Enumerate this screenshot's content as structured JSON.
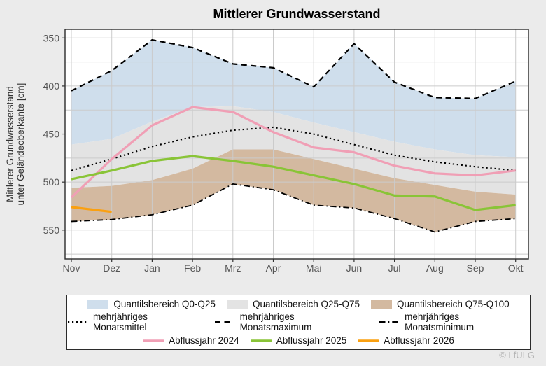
{
  "title": "Mittlerer Grundwasserstand",
  "y_axis": {
    "label_line1": "Mittlerer Grundwasserstand",
    "label_line2": "unter Geländeoberkante [cm]",
    "labeled_ticks": [
      350,
      400,
      450,
      500,
      550
    ]
  },
  "x_axis": {
    "months": [
      "Nov",
      "Dez",
      "Jan",
      "Feb",
      "Mrz",
      "Apr",
      "Mai",
      "Jun",
      "Jul",
      "Aug",
      "Sep",
      "Okt"
    ]
  },
  "chart_data": {
    "type": "area",
    "title": "Mittlerer Grundwasserstand",
    "ylabel": "Mittlerer Grundwasserstand unter Geländeoberkante [cm]",
    "xlabel": "",
    "categories": [
      "Nov",
      "Dez",
      "Jan",
      "Feb",
      "Mrz",
      "Apr",
      "Mai",
      "Jun",
      "Jul",
      "Aug",
      "Sep",
      "Okt"
    ],
    "y_inverted": true,
    "ylim": [
      350,
      575
    ],
    "grid_step": 25,
    "grid": true,
    "legend_position": "bottom",
    "bands": [
      {
        "name": "Quantilsbereich Q0-Q25",
        "color": "#cfdeec",
        "upper": [
          405,
          384,
          352,
          360,
          377,
          381,
          401,
          356,
          396,
          412,
          413,
          395
        ],
        "lower": [
          461,
          455,
          437,
          422,
          421,
          427,
          438,
          448,
          458,
          466,
          472,
          474
        ]
      },
      {
        "name": "Quantilsbereich Q25-Q75",
        "color": "#e3e3e3",
        "upper": [
          461,
          455,
          437,
          422,
          421,
          427,
          438,
          448,
          458,
          466,
          472,
          474
        ],
        "lower": [
          506,
          504,
          498,
          486,
          466,
          466,
          476,
          486,
          496,
          503,
          510,
          513
        ]
      },
      {
        "name": "Quantilsbereich Q75-Q100",
        "color": "#d3b9a0",
        "upper": [
          506,
          504,
          498,
          486,
          466,
          466,
          476,
          486,
          496,
          503,
          510,
          513
        ],
        "lower": [
          541,
          539,
          534,
          524,
          502,
          508,
          524,
          527,
          538,
          552,
          541,
          538
        ]
      }
    ],
    "series": [
      {
        "name": "mehrjähriges Monatsmittel",
        "style": "dotted",
        "color": "#000000",
        "width": 2.1,
        "values": [
          488,
          476,
          463,
          453,
          446,
          443,
          450,
          461,
          472,
          479,
          484,
          488
        ]
      },
      {
        "name": "mehrjähriges Monatsmaximum",
        "style": "dashed",
        "color": "#000000",
        "width": 2.2,
        "values": [
          405,
          384,
          352,
          360,
          377,
          381,
          401,
          356,
          396,
          412,
          413,
          395
        ]
      },
      {
        "name": "mehrjähriges Monatsminimum",
        "style": "dashdot",
        "color": "#000000",
        "width": 1.8,
        "values": [
          541,
          539,
          534,
          524,
          502,
          508,
          524,
          527,
          538,
          552,
          541,
          538
        ]
      },
      {
        "name": "Abflussjahr 2024",
        "style": "solid",
        "color": "#f09fb5",
        "width": 3.2,
        "values": [
          516,
          476,
          441,
          422,
          427,
          448,
          464,
          469,
          483,
          491,
          493,
          488
        ]
      },
      {
        "name": "Abflussjahr 2025",
        "style": "solid",
        "color": "#89c437",
        "width": 3.2,
        "values": [
          497,
          488,
          478,
          473,
          478,
          484,
          493,
          502,
          514,
          515,
          529,
          524
        ]
      },
      {
        "name": "Abflussjahr 2026",
        "style": "solid",
        "color": "#faa010",
        "width": 3.2,
        "values": [
          526,
          531,
          null,
          null,
          null,
          null,
          null,
          null,
          null,
          null,
          null,
          null
        ]
      }
    ]
  },
  "legend": {
    "bands": [
      {
        "label": "Quantilsbereich Q0-Q25"
      },
      {
        "label": "Quantilsbereich Q25-Q75"
      },
      {
        "label": "Quantilsbereich Q75-Q100"
      }
    ],
    "stat_lines": [
      {
        "label": "mehrjähriges Monatsmittel",
        "style": "dotted"
      },
      {
        "label": "mehrjähriges Monatsmaximum",
        "style": "dashed"
      },
      {
        "label": "mehrjähriges Monatsminimum",
        "style": "dashdot"
      }
    ],
    "years": [
      {
        "label": "Abflussjahr 2024",
        "color": "#f09fb5"
      },
      {
        "label": "Abflussjahr 2025",
        "color": "#89c437"
      },
      {
        "label": "Abflussjahr 2026",
        "color": "#faa010"
      }
    ]
  },
  "footer": {
    "copyright": "© LfULG"
  },
  "colors": {
    "background": "#ebebeb",
    "plot_background": "#ffffff",
    "plot_border": "#2b2b2b",
    "gridline": "#cbcbcb",
    "tick_text": "#555555",
    "band_q0_q25": "#cfdeec",
    "band_q25_q75": "#e3e3e3",
    "band_q75_q100": "#d3b9a0",
    "stat_line": "#000000",
    "year_2024": "#f09fb5",
    "year_2025": "#89c437",
    "year_2026": "#faa010",
    "copyright_text": "#b4b4b4"
  }
}
